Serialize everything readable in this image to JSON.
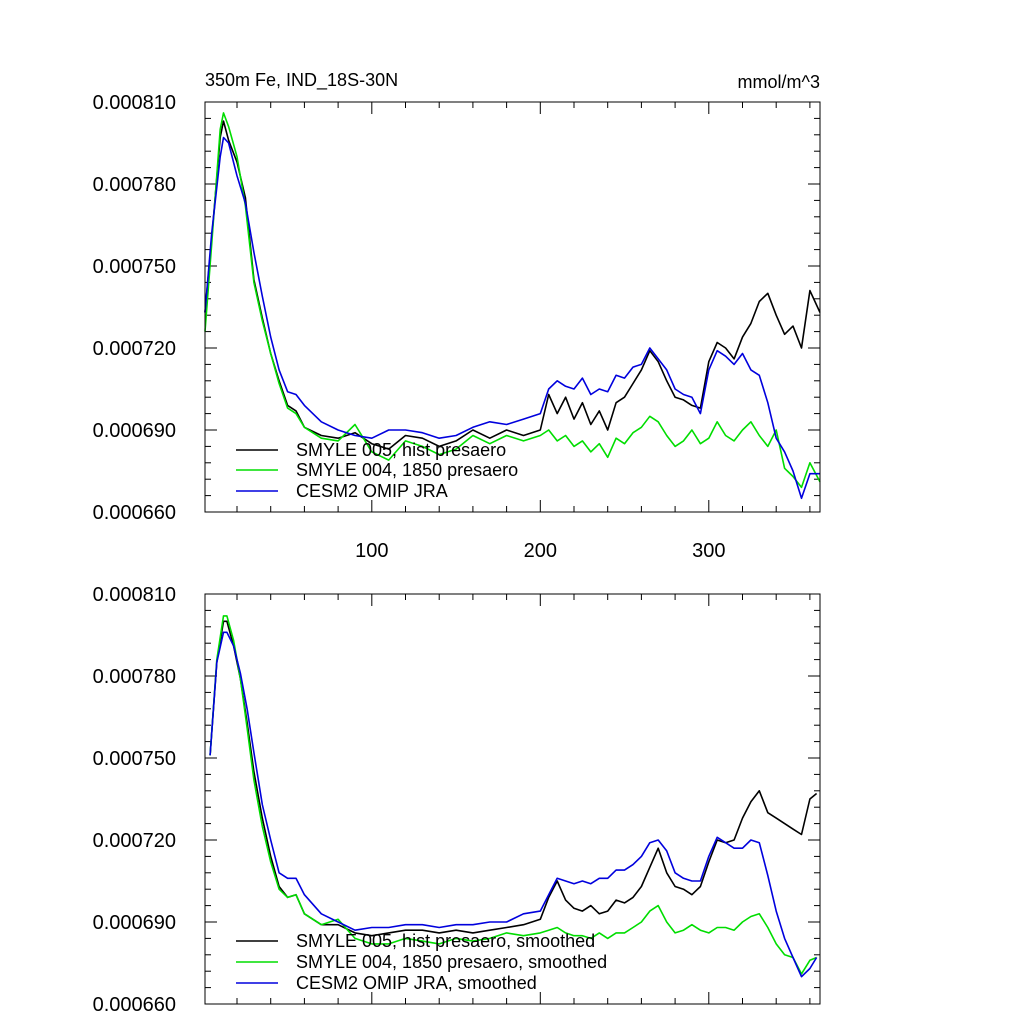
{
  "chart_data": [
    {
      "type": "line",
      "title": "350m Fe, IND_18S-30N",
      "units_label": "mmol/m^3",
      "xlim": [
        1,
        366
      ],
      "ylim": [
        0.00066,
        0.00081
      ],
      "x_ticks": [
        100,
        200,
        300
      ],
      "y_ticks": [
        0.00066,
        0.00069,
        0.00072,
        0.00075,
        0.00078,
        0.00081
      ],
      "y_tick_labels": [
        "0.000660",
        "0.000690",
        "0.000720",
        "0.000750",
        "0.000780",
        "0.000810"
      ],
      "x_tick_labels": [
        "100",
        "200",
        "300"
      ],
      "legend": [
        "SMYLE 005, hist presaero",
        "SMYLE 004, 1850 presaero",
        "CESM2 OMIP JRA"
      ],
      "series": [
        {
          "name": "SMYLE 005, hist presaero",
          "color": "#000000",
          "x": [
            1,
            5,
            10,
            12,
            15,
            20,
            25,
            30,
            35,
            40,
            45,
            50,
            55,
            60,
            70,
            80,
            90,
            100,
            110,
            120,
            130,
            140,
            150,
            160,
            170,
            180,
            190,
            200,
            205,
            210,
            215,
            220,
            225,
            230,
            235,
            240,
            245,
            250,
            255,
            260,
            265,
            270,
            275,
            280,
            285,
            290,
            295,
            300,
            305,
            310,
            315,
            320,
            325,
            330,
            335,
            340,
            345,
            350,
            355,
            360,
            366
          ],
          "values": [
            0.000733,
            0.00076,
            0.000797,
            0.000803,
            0.000796,
            0.000788,
            0.000775,
            0.000745,
            0.000731,
            0.000718,
            0.000708,
            0.000699,
            0.000697,
            0.000691,
            0.000688,
            0.000687,
            0.000689,
            0.000685,
            0.000683,
            0.000688,
            0.000687,
            0.000684,
            0.000686,
            0.00069,
            0.000687,
            0.00069,
            0.000688,
            0.00069,
            0.000703,
            0.000696,
            0.000702,
            0.000694,
            0.0007,
            0.000692,
            0.000697,
            0.00069,
            0.0007,
            0.000702,
            0.000707,
            0.000712,
            0.000719,
            0.000715,
            0.000708,
            0.000702,
            0.000701,
            0.000699,
            0.000698,
            0.000715,
            0.000722,
            0.00072,
            0.000716,
            0.000724,
            0.000729,
            0.000737,
            0.00074,
            0.000732,
            0.000725,
            0.000728,
            0.00072,
            0.000741,
            0.000733
          ]
        },
        {
          "name": "SMYLE 004, 1850 presaero",
          "color": "#00dd00",
          "x": [
            1,
            5,
            10,
            12,
            15,
            20,
            25,
            30,
            35,
            40,
            45,
            50,
            55,
            60,
            70,
            80,
            90,
            100,
            110,
            120,
            130,
            140,
            150,
            160,
            170,
            180,
            190,
            200,
            205,
            210,
            215,
            220,
            225,
            230,
            235,
            240,
            245,
            250,
            255,
            260,
            265,
            270,
            275,
            280,
            285,
            290,
            295,
            300,
            305,
            310,
            315,
            320,
            325,
            330,
            335,
            340,
            345,
            350,
            355,
            360,
            366
          ],
          "values": [
            0.000726,
            0.000758,
            0.0008,
            0.000806,
            0.000801,
            0.00079,
            0.000772,
            0.000744,
            0.00073,
            0.000718,
            0.000707,
            0.000698,
            0.000696,
            0.000691,
            0.000687,
            0.000686,
            0.000692,
            0.000682,
            0.000679,
            0.000686,
            0.000684,
            0.000681,
            0.000683,
            0.000688,
            0.000685,
            0.000688,
            0.000686,
            0.000688,
            0.00069,
            0.000686,
            0.000688,
            0.000684,
            0.000686,
            0.000682,
            0.000685,
            0.00068,
            0.000687,
            0.000685,
            0.000689,
            0.000691,
            0.000695,
            0.000693,
            0.000688,
            0.000684,
            0.000686,
            0.00069,
            0.000685,
            0.000687,
            0.000693,
            0.000688,
            0.000686,
            0.00069,
            0.000693,
            0.000688,
            0.000684,
            0.00069,
            0.000676,
            0.000673,
            0.000669,
            0.000678,
            0.000671
          ]
        },
        {
          "name": "CESM2 OMIP JRA",
          "color": "#0000dd",
          "x": [
            1,
            5,
            10,
            12,
            15,
            20,
            25,
            30,
            35,
            40,
            45,
            50,
            55,
            60,
            70,
            80,
            90,
            100,
            110,
            120,
            130,
            140,
            150,
            160,
            170,
            180,
            190,
            200,
            205,
            210,
            215,
            220,
            225,
            230,
            235,
            240,
            245,
            250,
            255,
            260,
            265,
            270,
            275,
            280,
            285,
            290,
            295,
            300,
            305,
            310,
            315,
            320,
            325,
            330,
            335,
            340,
            345,
            350,
            355,
            360,
            366
          ],
          "values": [
            0.000733,
            0.000762,
            0.00079,
            0.000797,
            0.000795,
            0.000783,
            0.000773,
            0.000755,
            0.000739,
            0.000724,
            0.000712,
            0.000704,
            0.000703,
            0.000699,
            0.000693,
            0.00069,
            0.000688,
            0.000687,
            0.00069,
            0.00069,
            0.000689,
            0.000687,
            0.000688,
            0.000691,
            0.000693,
            0.000692,
            0.000694,
            0.000696,
            0.000705,
            0.000708,
            0.000706,
            0.000705,
            0.000709,
            0.000703,
            0.000705,
            0.000704,
            0.00071,
            0.000709,
            0.000713,
            0.000714,
            0.00072,
            0.000716,
            0.000712,
            0.000705,
            0.000703,
            0.000702,
            0.000696,
            0.000712,
            0.000719,
            0.000717,
            0.000714,
            0.000718,
            0.000712,
            0.00071,
            0.0007,
            0.000687,
            0.000682,
            0.000675,
            0.000665,
            0.000674,
            0.000674
          ]
        }
      ]
    },
    {
      "type": "line",
      "title": "",
      "xlim": [
        1,
        366
      ],
      "ylim": [
        0.00066,
        0.00081
      ],
      "x_ticks": [
        100,
        200,
        300
      ],
      "y_ticks": [
        0.00066,
        0.00069,
        0.00072,
        0.00075,
        0.00078,
        0.00081
      ],
      "y_tick_labels": [
        "0.000660",
        "0.000690",
        "0.000720",
        "0.000750",
        "0.000780",
        "0.000810"
      ],
      "x_tick_labels": [],
      "legend": [
        "SMYLE 005, hist presaero, smoothed",
        "SMYLE 004, 1850 presaero, smoothed",
        "CESM2 OMIP JRA, smoothed"
      ],
      "series": [
        {
          "name": "SMYLE 005, hist presaero, smoothed",
          "color": "#000000",
          "x": [
            4,
            8,
            12,
            14,
            18,
            22,
            26,
            30,
            35,
            40,
            45,
            50,
            55,
            60,
            70,
            80,
            90,
            100,
            110,
            120,
            130,
            140,
            150,
            160,
            170,
            180,
            190,
            200,
            205,
            210,
            215,
            220,
            225,
            230,
            235,
            240,
            245,
            250,
            255,
            260,
            265,
            270,
            275,
            280,
            285,
            290,
            295,
            300,
            305,
            310,
            315,
            320,
            325,
            330,
            335,
            340,
            345,
            350,
            355,
            360,
            364
          ],
          "values": [
            0.000751,
            0.000785,
            0.0008,
            0.0008,
            0.000791,
            0.000779,
            0.000763,
            0.000745,
            0.000728,
            0.000714,
            0.000703,
            0.000699,
            0.0007,
            0.000693,
            0.000689,
            0.000689,
            0.000686,
            0.000685,
            0.000686,
            0.000687,
            0.000687,
            0.000686,
            0.000687,
            0.000686,
            0.000687,
            0.000688,
            0.000689,
            0.000691,
            0.000699,
            0.000705,
            0.000698,
            0.000695,
            0.000694,
            0.000696,
            0.000693,
            0.000694,
            0.000698,
            0.000697,
            0.000699,
            0.000703,
            0.00071,
            0.000717,
            0.000708,
            0.000703,
            0.000702,
            0.0007,
            0.000703,
            0.000712,
            0.00072,
            0.000719,
            0.00072,
            0.000728,
            0.000734,
            0.000738,
            0.00073,
            0.000728,
            0.000726,
            0.000724,
            0.000722,
            0.000735,
            0.000737
          ]
        },
        {
          "name": "SMYLE 004, 1850 presaero, smoothed",
          "color": "#00dd00",
          "x": [
            4,
            8,
            12,
            14,
            18,
            22,
            26,
            30,
            35,
            40,
            45,
            50,
            55,
            60,
            70,
            80,
            90,
            100,
            110,
            120,
            130,
            140,
            150,
            160,
            170,
            180,
            190,
            200,
            205,
            210,
            215,
            220,
            225,
            230,
            235,
            240,
            245,
            250,
            255,
            260,
            265,
            270,
            275,
            280,
            285,
            290,
            295,
            300,
            305,
            310,
            315,
            320,
            325,
            330,
            335,
            340,
            345,
            350,
            355,
            360,
            364
          ],
          "values": [
            0.000751,
            0.000786,
            0.000802,
            0.000802,
            0.000793,
            0.000779,
            0.000761,
            0.000742,
            0.000725,
            0.000712,
            0.000702,
            0.000699,
            0.0007,
            0.000693,
            0.000689,
            0.000691,
            0.000684,
            0.000682,
            0.000682,
            0.000684,
            0.000683,
            0.000682,
            0.000684,
            0.000683,
            0.000684,
            0.000686,
            0.000685,
            0.000686,
            0.000687,
            0.000688,
            0.000686,
            0.000685,
            0.000685,
            0.000684,
            0.000686,
            0.000684,
            0.000686,
            0.000686,
            0.000688,
            0.00069,
            0.000694,
            0.000696,
            0.00069,
            0.000686,
            0.000687,
            0.000689,
            0.000687,
            0.000686,
            0.000688,
            0.000688,
            0.000687,
            0.00069,
            0.000692,
            0.000693,
            0.000688,
            0.000682,
            0.000678,
            0.000677,
            0.000671,
            0.000676,
            0.000677
          ]
        },
        {
          "name": "CESM2 OMIP JRA, smoothed",
          "color": "#0000dd",
          "x": [
            4,
            8,
            12,
            14,
            18,
            22,
            26,
            30,
            35,
            40,
            45,
            50,
            55,
            60,
            70,
            80,
            90,
            100,
            110,
            120,
            130,
            140,
            150,
            160,
            170,
            180,
            190,
            200,
            205,
            210,
            215,
            220,
            225,
            230,
            235,
            240,
            245,
            250,
            255,
            260,
            265,
            270,
            275,
            280,
            285,
            290,
            295,
            300,
            305,
            310,
            315,
            320,
            325,
            330,
            335,
            340,
            345,
            350,
            355,
            360,
            364
          ],
          "values": [
            0.000751,
            0.000785,
            0.000796,
            0.000796,
            0.000791,
            0.000781,
            0.000768,
            0.000752,
            0.000733,
            0.00072,
            0.000708,
            0.000706,
            0.000706,
            0.0007,
            0.000693,
            0.00069,
            0.000687,
            0.000688,
            0.000688,
            0.000689,
            0.000689,
            0.000688,
            0.000689,
            0.000689,
            0.00069,
            0.00069,
            0.000693,
            0.000694,
            0.0007,
            0.000706,
            0.000705,
            0.000704,
            0.000705,
            0.000704,
            0.000706,
            0.000706,
            0.000709,
            0.000709,
            0.000711,
            0.000714,
            0.000719,
            0.00072,
            0.000716,
            0.000708,
            0.000706,
            0.000705,
            0.000705,
            0.000714,
            0.000721,
            0.000719,
            0.000717,
            0.000717,
            0.00072,
            0.000719,
            0.000707,
            0.000694,
            0.000684,
            0.000677,
            0.00067,
            0.000673,
            0.000677
          ]
        }
      ]
    }
  ]
}
